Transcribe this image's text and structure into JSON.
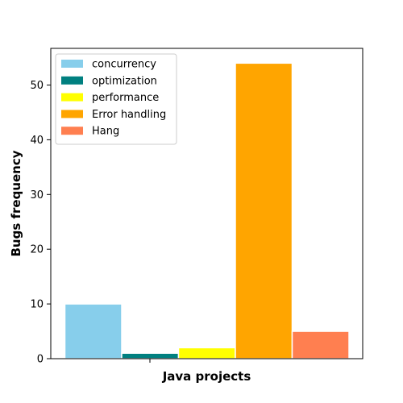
{
  "chart_data": {
    "type": "bar",
    "title": "",
    "xlabel": "Java projects",
    "ylabel": "Bugs frequency",
    "categories": [
      ""
    ],
    "ylim": [
      0,
      56.7
    ],
    "yticks": [
      0,
      10,
      20,
      30,
      40,
      50
    ],
    "grid": false,
    "legend_position": "top-left",
    "series": [
      {
        "name": "concurrency",
        "values": [
          10
        ],
        "color": "#87ceeb"
      },
      {
        "name": "optimization",
        "values": [
          1
        ],
        "color": "#008080"
      },
      {
        "name": "performance",
        "values": [
          2
        ],
        "color": "#ffff00"
      },
      {
        "name": "Error handling",
        "values": [
          54
        ],
        "color": "#ffa500"
      },
      {
        "name": "Hang",
        "values": [
          5
        ],
        "color": "#ff7f50"
      }
    ]
  }
}
